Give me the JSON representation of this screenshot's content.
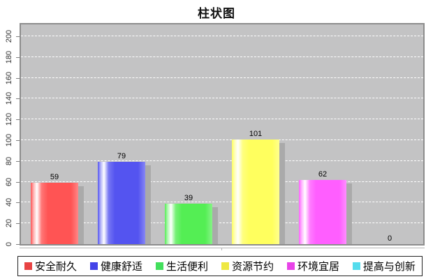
{
  "title": "柱状图",
  "chart_data": {
    "type": "bar",
    "title": "柱状图",
    "categories": [
      "安全耐久",
      "健康舒适",
      "生活便利",
      "资源节约",
      "环境宜居",
      "提高与创新"
    ],
    "values": [
      59,
      79,
      39,
      101,
      62,
      0
    ],
    "bar_colors": [
      "#ff5454",
      "#5454f0",
      "#54ee54",
      "#ffff5e",
      "#ff5eff",
      "#5ee8ee"
    ],
    "legend_swatch_colors": [
      "#e84343",
      "#4343e8",
      "#43df5c",
      "#eee843",
      "#e843e8",
      "#55dced"
    ],
    "xlabel": "",
    "ylabel": "",
    "ylim": [
      0,
      200
    ],
    "yticks": [
      0,
      20,
      40,
      60,
      80,
      100,
      120,
      140,
      160,
      180,
      200
    ],
    "grid": true,
    "gridline_color": "#ffffff",
    "plot_background": "#c3c3c4",
    "bar_shadow_color": "#aaaaaa",
    "legend_position": "bottom"
  }
}
